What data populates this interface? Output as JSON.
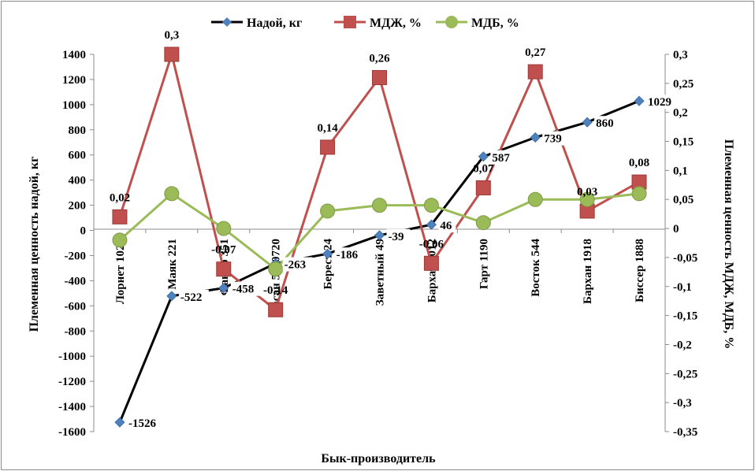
{
  "chart_data": {
    "type": "line",
    "categories": [
      "Лорнет 1026",
      "Маяк 221",
      "Факир 351",
      "Гасан 5040720",
      "Берест 24",
      "Заветный 49",
      "Бархат 1012",
      "Гарт 1190",
      "Восток 544",
      "Бархан 1918",
      "Биссер 1888"
    ],
    "xlabel": "Бык-производитель",
    "ylabel_left": "Племенная ценность надой, кг",
    "ylabel_right": "Племенная ценность МДЖ, МДБ, %",
    "ylim_left": [
      -1600,
      1400
    ],
    "yticks_left": [
      "1400",
      "1200",
      "1000",
      "800",
      "600",
      "400",
      "200",
      "0",
      "-200",
      "-400",
      "-600",
      "-800",
      "-1000",
      "-1200",
      "-1400",
      "-1600"
    ],
    "ylim_right": [
      -0.35,
      0.3
    ],
    "yticks_right": [
      "0,3",
      "0,25",
      "0,2",
      "0,15",
      "0,1",
      "0,05",
      "0",
      "-0,05",
      "-0,1",
      "-0,15",
      "-0,2",
      "-0,25",
      "-0,3",
      "-0,35"
    ],
    "legend_position": "top",
    "grid": false,
    "series": [
      {
        "name": "Надой, кг",
        "axis": "left",
        "color": "#000000",
        "marker_color": "#4f81bd",
        "marker": "diamond",
        "values": [
          -1526,
          -522,
          -458,
          -263,
          -186,
          -39,
          46,
          587,
          739,
          860,
          1029
        ],
        "labels": [
          "-1526",
          "-522",
          "-458",
          "-263",
          "-186",
          "-39",
          "46",
          "587",
          "739",
          "860",
          "1029"
        ]
      },
      {
        "name": "МДЖ, %",
        "axis": "right",
        "color": "#c0504d",
        "marker": "square",
        "values": [
          0.02,
          0.3,
          -0.07,
          -0.14,
          0.14,
          0.26,
          -0.06,
          0.07,
          0.27,
          0.03,
          0.08
        ],
        "labels": [
          "0,02",
          "0,3",
          "-0,07",
          "-0,14",
          "0,14",
          "0,26",
          "-0,06",
          "0,07",
          "0,27",
          "0,03",
          "0,08"
        ]
      },
      {
        "name": "МДБ, %",
        "axis": "right",
        "color": "#9bbb59",
        "marker": "circle",
        "values": [
          -0.02,
          0.06,
          0.0,
          -0.07,
          0.03,
          0.04,
          0.04,
          0.01,
          0.05,
          0.05,
          0.06
        ],
        "labels": []
      }
    ]
  }
}
